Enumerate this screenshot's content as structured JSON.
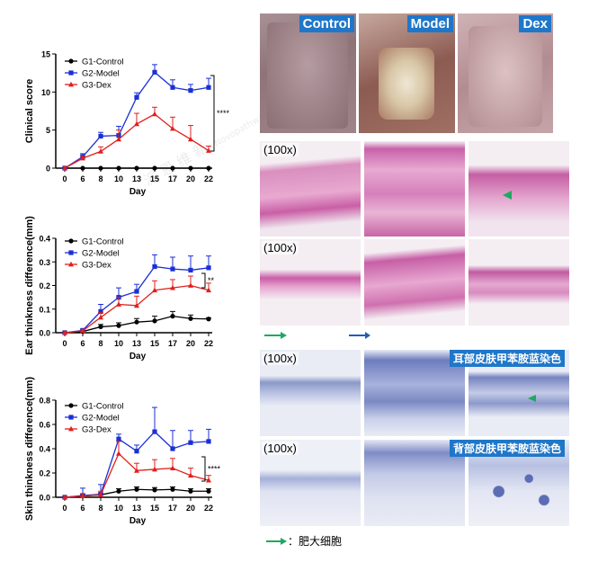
{
  "colors": {
    "control": "#000000",
    "model": "#1a2fd6",
    "dex": "#e0201e",
    "label_blue": "#1f77c9",
    "mast_arrow": "#1fa860"
  },
  "watermark": {
    "text_cn": "派 恩 维 新",
    "text_en": "Novopathway"
  },
  "chart_data": [
    {
      "type": "line",
      "ylabel": "Clinical score",
      "xlabel": "Day",
      "x": [
        0,
        6,
        8,
        10,
        13,
        15,
        17,
        20,
        22
      ],
      "ylim": [
        0,
        15
      ],
      "yticks": [
        "0",
        "5",
        "10",
        "15"
      ],
      "significance": "****",
      "series": [
        {
          "name": "G1-Control",
          "values": [
            0,
            0,
            0,
            0,
            0,
            0,
            0,
            0,
            0
          ],
          "err": [
            0,
            0,
            0,
            0,
            0,
            0,
            0,
            0,
            0
          ]
        },
        {
          "name": "G2-Model",
          "values": [
            0,
            1.5,
            4.2,
            4.3,
            9.3,
            12.6,
            10.6,
            10.2,
            10.6
          ],
          "err": [
            0,
            0.4,
            0.5,
            1.2,
            0.6,
            1.0,
            1.0,
            0.8,
            1.2
          ]
        },
        {
          "name": "G3-Dex",
          "values": [
            0,
            1.3,
            2.2,
            3.8,
            5.8,
            7.1,
            5.2,
            3.8,
            2.3
          ],
          "err": [
            0,
            0.3,
            0.6,
            1.2,
            1.4,
            0.9,
            1.5,
            1.8,
            0.6
          ]
        }
      ]
    },
    {
      "type": "line",
      "ylabel": "Ear thinkness difference(mm)",
      "xlabel": "Day",
      "x": [
        0,
        6,
        8,
        10,
        13,
        15,
        17,
        20,
        22
      ],
      "ylim": [
        0,
        0.4
      ],
      "yticks": [
        "0.0",
        "0.1",
        "0.2",
        "0.3",
        "0.4"
      ],
      "significance": "**",
      "series": [
        {
          "name": "G1-Control",
          "values": [
            0,
            0.005,
            0.025,
            0.03,
            0.045,
            0.05,
            0.07,
            0.06,
            0.058
          ],
          "err": [
            0,
            0.003,
            0.01,
            0.012,
            0.015,
            0.02,
            0.02,
            0.015,
            0.005
          ]
        },
        {
          "name": "G2-Model",
          "values": [
            0,
            0.01,
            0.09,
            0.15,
            0.175,
            0.28,
            0.27,
            0.265,
            0.275
          ],
          "err": [
            0,
            0.005,
            0.03,
            0.04,
            0.03,
            0.05,
            0.05,
            0.06,
            0.05
          ]
        },
        {
          "name": "G3-Dex",
          "values": [
            0,
            0.008,
            0.065,
            0.12,
            0.115,
            0.18,
            0.19,
            0.2,
            0.18
          ],
          "err": [
            0,
            0.005,
            0.02,
            0.03,
            0.04,
            0.04,
            0.035,
            0.04,
            0.03
          ]
        }
      ]
    },
    {
      "type": "line",
      "ylabel": "Skin thinkness difference(mm)",
      "xlabel": "Day",
      "x": [
        0,
        6,
        8,
        10,
        13,
        15,
        17,
        20,
        22
      ],
      "ylim": [
        0,
        0.8
      ],
      "yticks": [
        "0.0",
        "0.2",
        "0.4",
        "0.6",
        "0.8"
      ],
      "significance": "****",
      "series": [
        {
          "name": "G1-Control",
          "values": [
            0,
            0.01,
            0.02,
            0.05,
            0.065,
            0.06,
            0.065,
            0.05,
            0.05
          ],
          "err": [
            0,
            0.01,
            0.01,
            0.02,
            0.02,
            0.02,
            0.02,
            0.02,
            0.02
          ]
        },
        {
          "name": "G2-Model",
          "values": [
            0,
            0.015,
            0.025,
            0.48,
            0.38,
            0.54,
            0.4,
            0.45,
            0.46
          ],
          "err": [
            0,
            0.06,
            0.08,
            0.04,
            0.05,
            0.2,
            0.15,
            0.1,
            0.1
          ]
        },
        {
          "name": "G3-Dex",
          "values": [
            0,
            0.01,
            0.02,
            0.36,
            0.22,
            0.23,
            0.24,
            0.18,
            0.14
          ],
          "err": [
            0,
            0.02,
            0.03,
            0.1,
            0.06,
            0.08,
            0.08,
            0.06,
            0.04
          ]
        }
      ]
    }
  ],
  "photos": {
    "labels": [
      "Control",
      "Model",
      "Dex"
    ]
  },
  "he": {
    "label": "(100x)"
  },
  "tb": {
    "label": "(100x)",
    "ear_title": "耳部皮肤甲苯胺蓝染色",
    "back_title": "背部皮肤甲苯胺蓝染色"
  },
  "legend_note": "：肥大细胞"
}
